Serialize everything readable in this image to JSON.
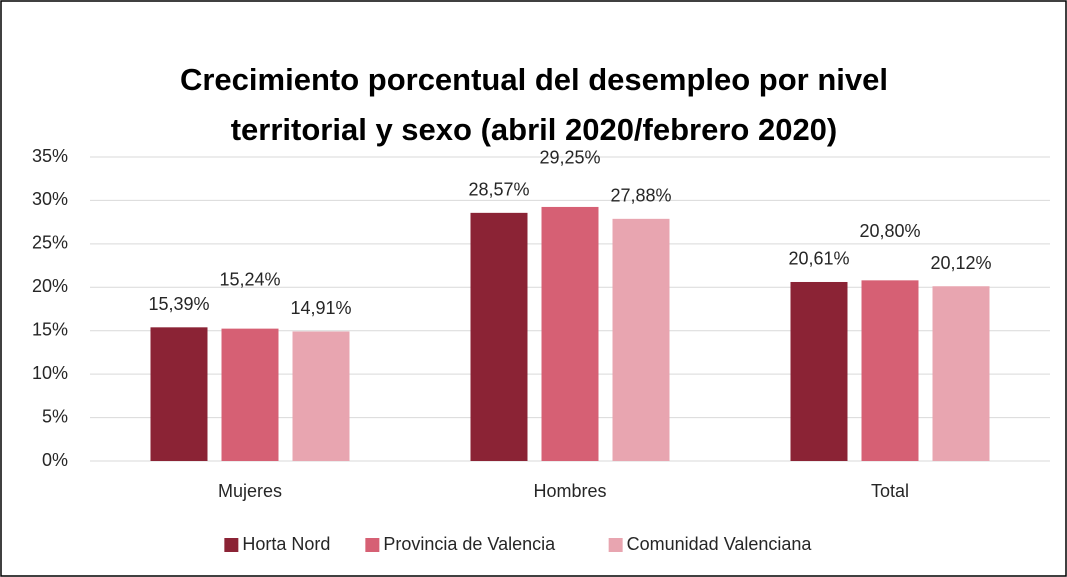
{
  "chart_data": {
    "type": "bar",
    "title": [
      "Crecimiento porcentual del desempleo por nivel",
      "territorial y sexo (abril 2020/febrero 2020)"
    ],
    "categories": [
      "Mujeres",
      "Hombres",
      "Total"
    ],
    "series": [
      {
        "name": "Horta Nord",
        "color": "#8b2335",
        "values": [
          15.39,
          28.57,
          20.61
        ],
        "value_labels": [
          "15,39%",
          "28,57%",
          "20,61%"
        ]
      },
      {
        "name": "Provincia de Valencia",
        "color": "#d66074",
        "values": [
          15.24,
          29.25,
          20.8
        ],
        "value_labels": [
          "15,24%",
          "29,25%",
          "20,80%"
        ]
      },
      {
        "name": "Comunidad Valenciana",
        "color": "#e8a5b0",
        "values": [
          14.91,
          27.88,
          20.12
        ],
        "value_labels": [
          "14,91%",
          "27,88%",
          "20,12%"
        ]
      }
    ],
    "ylim": [
      0,
      35
    ],
    "yticks": [
      {
        "value": 0,
        "label": "0%"
      },
      {
        "value": 5,
        "label": "5%"
      },
      {
        "value": 10,
        "label": "10%"
      },
      {
        "value": 15,
        "label": "15%"
      },
      {
        "value": 20,
        "label": "20%"
      },
      {
        "value": 25,
        "label": "25%"
      },
      {
        "value": 30,
        "label": "30%"
      },
      {
        "value": 35,
        "label": "35%"
      }
    ],
    "grid": true,
    "legend": "bottom"
  }
}
